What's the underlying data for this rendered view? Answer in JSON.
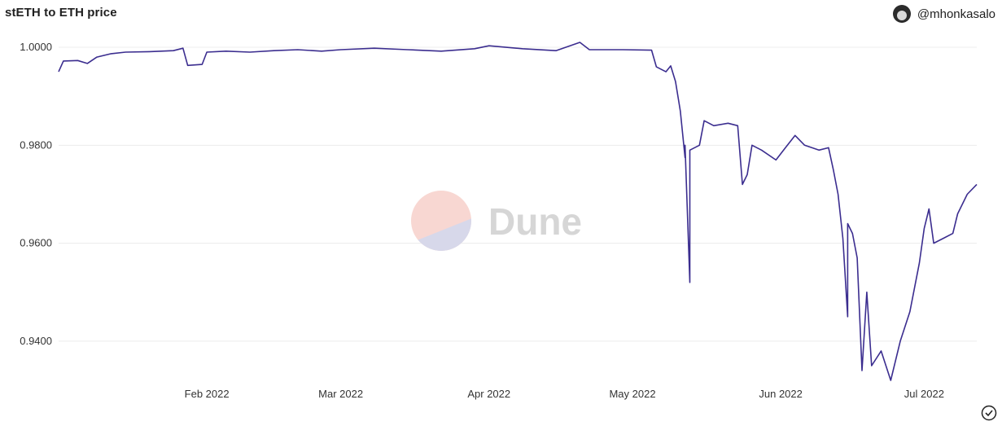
{
  "header": {
    "title": "stETH to ETH price",
    "username": "@mhonkasalo"
  },
  "watermark": {
    "text": "Dune"
  },
  "colors": {
    "line": "#3b2d8f",
    "grid": "#ececec",
    "logo_top": "#f8d7d2",
    "logo_bottom": "#d7d8ea"
  },
  "chart_data": {
    "type": "line",
    "title": "stETH to ETH price",
    "xlabel": "",
    "ylabel": "",
    "xlim": [
      "2022-01-01",
      "2022-07-12"
    ],
    "ylim": [
      0.9315,
      1.0025
    ],
    "y_ticks": [
      {
        "value": 1.0,
        "label": "1.0000"
      },
      {
        "value": 0.98,
        "label": "0.9800"
      },
      {
        "value": 0.96,
        "label": "0.9600"
      },
      {
        "value": 0.94,
        "label": "0.9400"
      }
    ],
    "x_ticks": [
      {
        "value": "2022-02-01",
        "label": "Feb 2022"
      },
      {
        "value": "2022-03-01",
        "label": "Mar 2022"
      },
      {
        "value": "2022-04-01",
        "label": "Apr 2022"
      },
      {
        "value": "2022-05-01",
        "label": "May 2022"
      },
      {
        "value": "2022-06-01",
        "label": "Jun 2022"
      },
      {
        "value": "2022-07-01",
        "label": "Jul 2022"
      }
    ],
    "grid": true,
    "legend": "none",
    "series": [
      {
        "points": [
          [
            "2022-01-01",
            0.995
          ],
          [
            "2022-01-02",
            0.9972
          ],
          [
            "2022-01-05",
            0.9973
          ],
          [
            "2022-01-07",
            0.9967
          ],
          [
            "2022-01-09",
            0.998
          ],
          [
            "2022-01-12",
            0.9987
          ],
          [
            "2022-01-15",
            0.999
          ],
          [
            "2022-01-20",
            0.9991
          ],
          [
            "2022-01-25",
            0.9993
          ],
          [
            "2022-01-27",
            0.9998
          ],
          [
            "2022-01-28",
            0.9963
          ],
          [
            "2022-01-31",
            0.9965
          ],
          [
            "2022-02-01",
            0.999
          ],
          [
            "2022-02-05",
            0.9992
          ],
          [
            "2022-02-10",
            0.999
          ],
          [
            "2022-02-15",
            0.9993
          ],
          [
            "2022-02-20",
            0.9995
          ],
          [
            "2022-02-25",
            0.9992
          ],
          [
            "2022-03-01",
            0.9995
          ],
          [
            "2022-03-08",
            0.9998
          ],
          [
            "2022-03-15",
            0.9995
          ],
          [
            "2022-03-22",
            0.9992
          ],
          [
            "2022-03-29",
            0.9997
          ],
          [
            "2022-04-01",
            1.0003
          ],
          [
            "2022-04-08",
            0.9997
          ],
          [
            "2022-04-15",
            0.9993
          ],
          [
            "2022-04-20",
            1.001
          ],
          [
            "2022-04-22",
            0.9995
          ],
          [
            "2022-04-29",
            0.9995
          ],
          [
            "2022-05-05",
            0.9994
          ],
          [
            "2022-05-06",
            0.996
          ],
          [
            "2022-05-08",
            0.995
          ],
          [
            "2022-05-09",
            0.9962
          ],
          [
            "2022-05-10",
            0.993
          ],
          [
            "2022-05-11",
            0.987
          ],
          [
            "2022-05-12",
            0.9775
          ],
          [
            "2022-05-12",
            0.98
          ],
          [
            "2022-05-13",
            0.952
          ],
          [
            "2022-05-13",
            0.979
          ],
          [
            "2022-05-15",
            0.98
          ],
          [
            "2022-05-16",
            0.985
          ],
          [
            "2022-05-18",
            0.984
          ],
          [
            "2022-05-21",
            0.9845
          ],
          [
            "2022-05-23",
            0.984
          ],
          [
            "2022-05-24",
            0.972
          ],
          [
            "2022-05-25",
            0.974
          ],
          [
            "2022-05-26",
            0.98
          ],
          [
            "2022-05-28",
            0.979
          ],
          [
            "2022-05-31",
            0.977
          ],
          [
            "2022-06-02",
            0.9795
          ],
          [
            "2022-06-04",
            0.982
          ],
          [
            "2022-06-06",
            0.98
          ],
          [
            "2022-06-09",
            0.979
          ],
          [
            "2022-06-11",
            0.9795
          ],
          [
            "2022-06-12",
            0.975
          ],
          [
            "2022-06-13",
            0.97
          ],
          [
            "2022-06-14",
            0.961
          ],
          [
            "2022-06-15",
            0.945
          ],
          [
            "2022-06-15",
            0.964
          ],
          [
            "2022-06-16",
            0.962
          ],
          [
            "2022-06-17",
            0.957
          ],
          [
            "2022-06-18",
            0.934
          ],
          [
            "2022-06-19",
            0.95
          ],
          [
            "2022-06-20",
            0.935
          ],
          [
            "2022-06-22",
            0.938
          ],
          [
            "2022-06-24",
            0.932
          ],
          [
            "2022-06-26",
            0.94
          ],
          [
            "2022-06-28",
            0.946
          ],
          [
            "2022-06-30",
            0.956
          ],
          [
            "2022-07-01",
            0.963
          ],
          [
            "2022-07-02",
            0.967
          ],
          [
            "2022-07-03",
            0.96
          ],
          [
            "2022-07-05",
            0.961
          ],
          [
            "2022-07-07",
            0.962
          ],
          [
            "2022-07-08",
            0.966
          ],
          [
            "2022-07-10",
            0.97
          ],
          [
            "2022-07-12",
            0.972
          ]
        ]
      }
    ]
  }
}
